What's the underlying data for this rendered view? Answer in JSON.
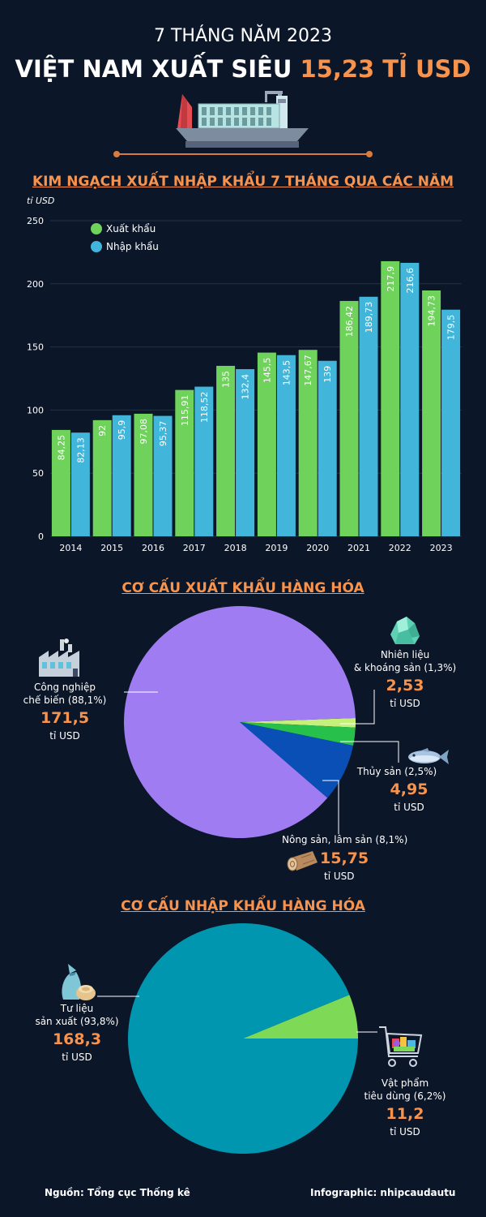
{
  "header": {
    "subtitle": "7 THÁNG NĂM 2023",
    "title_main": "VIỆT NAM XUẤT SIÊU ",
    "title_value": "15,23 TỈ USD"
  },
  "chart_section_title": "KIM NGẠCH XUẤT NHẬP KHẨU 7 THÁNG QUA CÁC NĂM",
  "export_section_title": "CƠ CẤU XUẤT KHẨU HÀNG HÓA",
  "import_section_title": "CƠ CẤU NHẬP KHẨU HÀNG HÓA",
  "colors": {
    "background": "#0c1629",
    "accent": "#f7934c",
    "export_bar": "#6fd35b",
    "import_bar": "#41b6da",
    "industry": "#a07cf2",
    "agriculture": "#0a4fb5",
    "seafood": "#27c04a",
    "fuel": "#c7f07a",
    "production_goods": "#0096b0",
    "consumer_goods": "#7ed957"
  },
  "chart_data": [
    {
      "type": "bar",
      "ylabel": "tỉ USD",
      "ylim": [
        0,
        250
      ],
      "yticks": [
        0,
        50,
        100,
        150,
        200,
        250
      ],
      "categories": [
        "2014",
        "2015",
        "2016",
        "2017",
        "2018",
        "2019",
        "2020",
        "2021",
        "2022",
        "2023"
      ],
      "series": [
        {
          "name": "Xuất khẩu",
          "values": [
            84.25,
            92,
            97.08,
            115.91,
            135,
            145.5,
            147.67,
            186.42,
            217.9,
            194.73
          ],
          "labels": [
            "84,25",
            "92",
            "97,08",
            "115,91",
            "135",
            "145,5",
            "147,67",
            "186,42",
            "217,9",
            "194,73"
          ]
        },
        {
          "name": "Nhập khẩu",
          "values": [
            82.13,
            95.9,
            95.37,
            118.52,
            132.4,
            143.5,
            139,
            189.73,
            216.6,
            179.5
          ],
          "labels": [
            "82,13",
            "95,9",
            "95,37",
            "118,52",
            "132,4",
            "143,5",
            "139",
            "189,73",
            "216,6",
            "179,5"
          ]
        }
      ],
      "grid": true,
      "legend": "top-left"
    },
    {
      "type": "pie",
      "slices": [
        {
          "name": "Công nghiệp chế biến",
          "percent": 88.1,
          "value": 171.5,
          "color": "#a07cf2"
        },
        {
          "name": "Nhiên liệu & khoáng sản",
          "percent": 1.3,
          "value": 2.53,
          "color": "#c7f07a"
        },
        {
          "name": "Thủy sản",
          "percent": 2.5,
          "value": 4.95,
          "color": "#27c04a"
        },
        {
          "name": "Nông sản, lâm sản",
          "percent": 8.1,
          "value": 15.75,
          "color": "#0a4fb5"
        }
      ]
    },
    {
      "type": "pie",
      "slices": [
        {
          "name": "Tư liệu sản xuất",
          "percent": 93.8,
          "value": 168.3,
          "color": "#0096b0"
        },
        {
          "name": "Vật phẩm tiêu dùng",
          "percent": 6.2,
          "value": 11.2,
          "color": "#7ed957"
        }
      ]
    }
  ],
  "export_labels": {
    "industry": {
      "line1": "Công nghiệp",
      "line2": "chế biến (88,1%)",
      "value": "171,5",
      "unit": "tỉ USD"
    },
    "fuel": {
      "line1": "Nhiên liệu",
      "line2": "& khoáng sản (1,3%)",
      "value": "2,53",
      "unit": "tỉ USD"
    },
    "seafood": {
      "line1": "Thủy sản (2,5%)",
      "value": "4,95",
      "unit": "tỉ USD"
    },
    "agriculture": {
      "line1": "Nông sản, lâm sản (8,1%)",
      "value": "15,75",
      "unit": "tỉ USD"
    }
  },
  "import_labels": {
    "production": {
      "line1": "Tư liệu",
      "line2": "sản xuất (93,8%)",
      "value": "168,3",
      "unit": "tỉ USD"
    },
    "consumer": {
      "line1": "Vật phẩm",
      "line2": "tiêu dùng (6,2%)",
      "value": "11,2",
      "unit": "tỉ USD"
    }
  },
  "footer": {
    "source": "Nguồn: Tổng cục Thống kê",
    "credit": "Infographic: nhipcaudautu"
  },
  "icons": [
    "ship-icon",
    "factory-icon",
    "mineral-rock-icon",
    "fish-icon",
    "wood-log-icon",
    "sack-icon",
    "shopping-cart-icon"
  ]
}
